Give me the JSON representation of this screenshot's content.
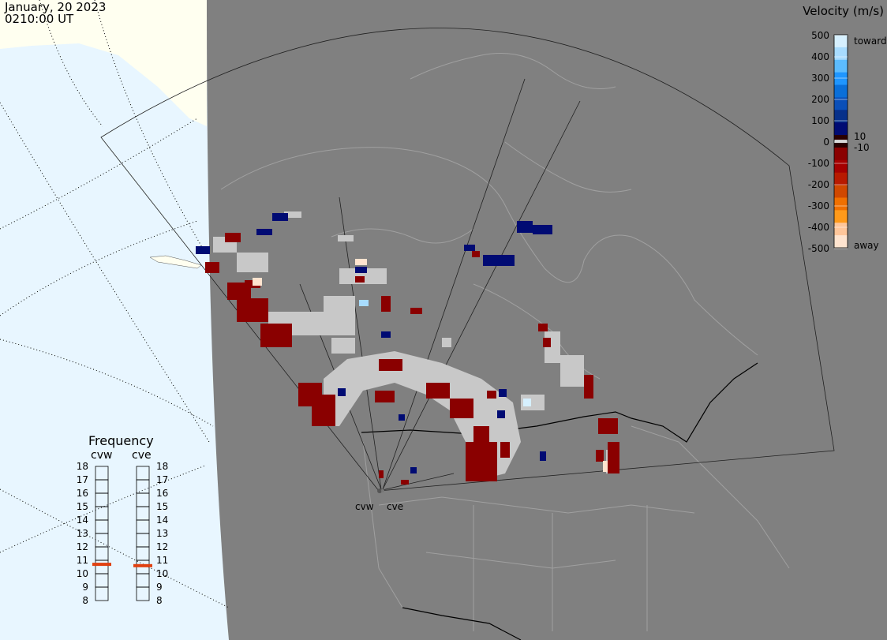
{
  "header": {
    "date": "January, 20 2023",
    "time": "0210:00 UT"
  },
  "colorbar": {
    "title": "Velocity (m/s)",
    "ticks": [
      "500",
      "400",
      "300",
      "200",
      "100",
      "0",
      "-100",
      "-200",
      "-300",
      "-400",
      "-500"
    ],
    "toward_label": "toward",
    "away_label": "away",
    "pos_min_label": "10",
    "neg_min_label": "-10",
    "colors": [
      "#d6f0ff",
      "#a8dcff",
      "#5cbcff",
      "#1f96ff",
      "#0a6fd9",
      "#0a4fb8",
      "#06308a",
      "#000b73",
      "#2a0000",
      "#8a0000",
      "#a50000",
      "#b81a00",
      "#d04800",
      "#f07000",
      "#ff9a1a",
      "#ffc69a",
      "#ffe4cf"
    ]
  },
  "stations": {
    "west": "cvw",
    "east": "cve"
  },
  "frequency": {
    "title": "Frequency",
    "labels": [
      "18",
      "17",
      "16",
      "15",
      "14",
      "13",
      "12",
      "11",
      "10",
      "9",
      "8"
    ],
    "cvw_value": 10.7,
    "cve_value": 10.6,
    "indicator_color": "#e04010"
  },
  "colors": {
    "ocean": "#e8f6ff",
    "land_light": "#fffff0",
    "night": "#808080",
    "ground_scatter": "#c8c8c8",
    "toward_dark": "#000080",
    "away_dark": "#8a0000"
  }
}
